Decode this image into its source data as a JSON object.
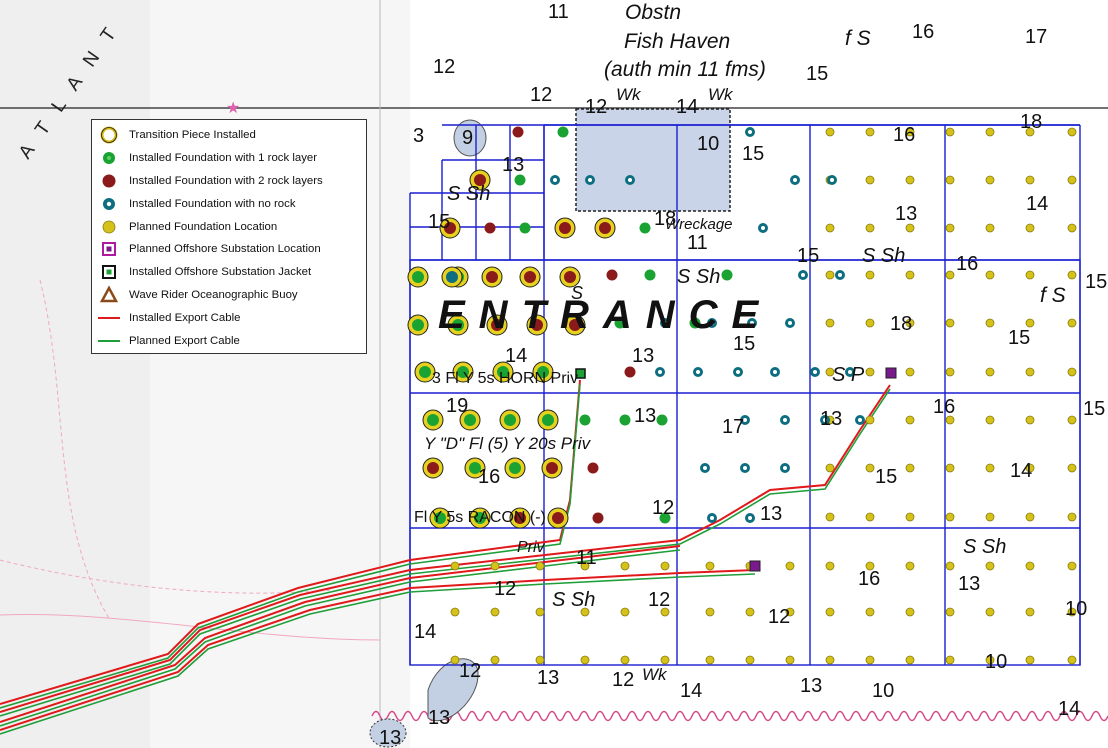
{
  "map": {
    "legend": {
      "items": [
        {
          "label": "Transition Piece Installed",
          "symbol": "transition-piece"
        },
        {
          "label": "Installed Foundation with 1 rock layer",
          "symbol": "found-1rock"
        },
        {
          "label": "Installed Foundation with 2 rock layers",
          "symbol": "found-2rock"
        },
        {
          "label": "Installed Foundation with no rock",
          "symbol": "found-norock"
        },
        {
          "label": "Planned Foundation Location",
          "symbol": "planned"
        },
        {
          "label": "Planned Offshore Substation Location",
          "symbol": "oss-planned"
        },
        {
          "label": "Installed Offshore Substation Jacket",
          "symbol": "oss-installed"
        },
        {
          "label": "Wave Rider Oceanographic Buoy",
          "symbol": "buoy"
        },
        {
          "label": "Installed Export Cable",
          "symbol": "cable-installed"
        },
        {
          "label": "Planned Export Cable",
          "symbol": "cable-planned"
        }
      ]
    },
    "chart_text": {
      "obstn": "Obstn",
      "fish_haven": "Fish Haven",
      "auth_min": "(auth min 11 fms)",
      "fs_top": "f S",
      "fs_right": "f S",
      "entrance": "ENTRANCE",
      "wreckage": "Wreckage",
      "wk1": "Wk",
      "wk2": "Wk",
      "wk3": "Wk",
      "ssh1": "S Sh",
      "ssh2": "S Sh",
      "ssh3": "S Sh",
      "ssh4": "S Sh",
      "ssh5": "S Sh",
      "sp": "S P",
      "s_letter": "S",
      "horn": "3 Fl Y 5s HORN Priv",
      "buoy_d": "Y \"D\" Fl (5) Y 20s Priv",
      "racon": "Fl Y 5s RACON (-)",
      "priv": "Priv",
      "atlantic": "A T L A N T"
    },
    "soundings": [
      "11",
      "16",
      "17",
      "12",
      "15",
      "12",
      "12",
      "14",
      "18",
      "3",
      "9",
      "10",
      "15",
      "16",
      "13",
      "15",
      "18",
      "11",
      "13",
      "14",
      "16",
      "15",
      "15",
      "18",
      "15",
      "15",
      "14",
      "13",
      "19",
      "13",
      "17",
      "13",
      "16",
      "15",
      "15",
      "14",
      "16",
      "12",
      "13",
      "11",
      "12",
      "12",
      "16",
      "13",
      "12",
      "14",
      "10",
      "12",
      "13",
      "12",
      "14",
      "13",
      "10",
      "10",
      "13",
      "13",
      "14"
    ],
    "colors": {
      "grid": "#1a1fd0",
      "installed_cable": "#e0191a",
      "planned_cable": "#1f9e3a",
      "planned_dot": "#d4c21a",
      "one_rock": "#1aa332",
      "two_rock": "#8b1a1a",
      "no_rock": "#17687a",
      "oss": "#7a1a8f",
      "wreck_area": "#c9d4e8",
      "contour": "#e8a0b8"
    }
  }
}
